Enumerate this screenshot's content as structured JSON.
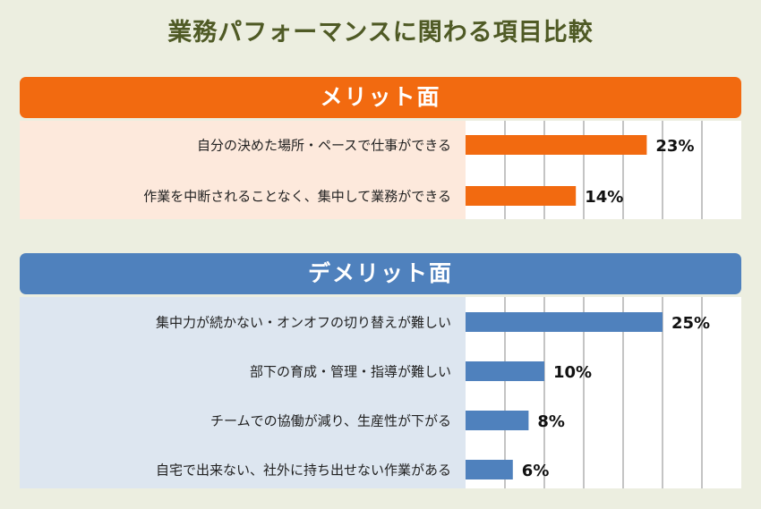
{
  "title": "業務パフォーマンスに関わる項目比較",
  "colors": {
    "merit": "#f26a10",
    "merit_bg": "#fde9dc",
    "demerit": "#4f81bd",
    "demerit_bg": "#dde6f0",
    "grid": "#888888"
  },
  "chart_data": [
    {
      "type": "bar",
      "orientation": "horizontal",
      "title": "メリット面",
      "categories": [
        "自分の決めた場所・ペースで仕事ができる",
        "作業を中断されることなく、集中して業務ができる"
      ],
      "values": [
        23,
        14
      ],
      "value_labels": [
        "23%",
        "14%"
      ],
      "unit": "%",
      "xlim": [
        0,
        35
      ],
      "grid": true
    },
    {
      "type": "bar",
      "orientation": "horizontal",
      "title": "デメリット面",
      "categories": [
        "集中力が続かない・オンオフの切り替えが難しい",
        "部下の育成・管理・指導が難しい",
        "チームでの協働が減り、生産性が下がる",
        "自宅で出来ない、社外に持ち出せない作業がある"
      ],
      "values": [
        25,
        10,
        8,
        6
      ],
      "value_labels": [
        "25%",
        "10%",
        "8%",
        "6%"
      ],
      "unit": "%",
      "xlim": [
        0,
        35
      ],
      "grid": true
    }
  ]
}
